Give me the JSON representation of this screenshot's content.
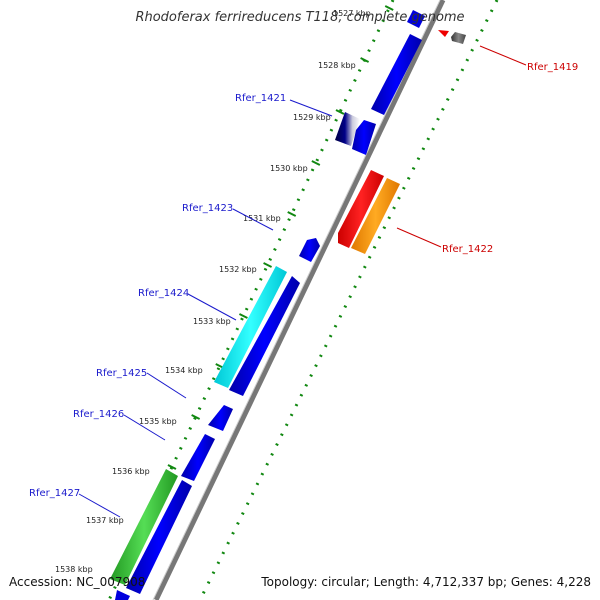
{
  "title": "Rhodoferax ferrireducens T118, complete genome",
  "footer": {
    "accession": "Accession: NC_007908",
    "summary": "Topology: circular; Length: 4,712,337 bp; Genes: 4,228"
  },
  "ticks": [
    "1527 kbp",
    "1528 kbp",
    "1529 kbp",
    "1530 kbp",
    "1531 kbp",
    "1532 kbp",
    "1533 kbp",
    "1534 kbp",
    "1535 kbp",
    "1536 kbp",
    "1537 kbp",
    "1538 kbp"
  ],
  "gene_labels": [
    {
      "name": "Rfer_1419",
      "color": "#cc0000"
    },
    {
      "name": "Rfer_1421",
      "color": "#1a1acc"
    },
    {
      "name": "Rfer_1423",
      "color": "#1a1acc"
    },
    {
      "name": "Rfer_1422",
      "color": "#cc0000"
    },
    {
      "name": "Rfer_1424",
      "color": "#1a1acc"
    },
    {
      "name": "Rfer_1425",
      "color": "#1a1acc"
    },
    {
      "name": "Rfer_1426",
      "color": "#1a1acc"
    },
    {
      "name": "Rfer_1427",
      "color": "#1a1acc"
    }
  ],
  "colors": {
    "forward_gene": "#0000ee",
    "highlight_cyan": "#00e5ee",
    "highlight_green": "#33bb33",
    "highlight_red": "#ee0000",
    "highlight_orange": "#ff8c00",
    "highlight_navy": "#000066",
    "highlight_gray": "#555555",
    "backbone": "#888888",
    "tick_ring": "#118811"
  }
}
